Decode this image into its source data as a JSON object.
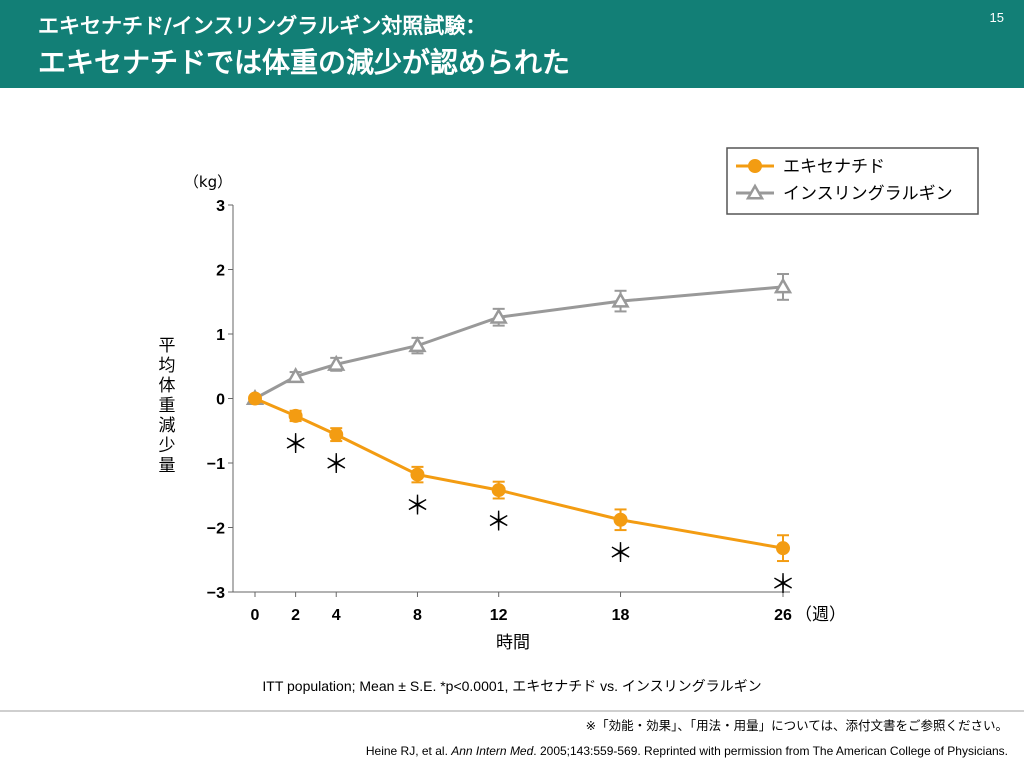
{
  "slide": {
    "title_line1": "エキセナチド/インスリングラルギン対照試験：",
    "title_line2": "エキセナチドでは体重の減少が認められた",
    "page_number": "15",
    "note": "ITT population; Mean ± S.E.  *p<0.0001, エキセナチド vs. インスリングラルギン",
    "footnote": "※「効能・効果」、「用法・用量」については、添付文書をご参照ください。",
    "citation_pre": "Heine RJ, et al. ",
    "citation_journal": "Ann Intern Med",
    "citation_post": ". 2005;143:559-569. Reprinted with permission from The American College of Physicians."
  },
  "colors": {
    "header_bg": "#127f76",
    "exenatide": "#f39c12",
    "glargine": "#999999"
  },
  "chart_data": {
    "type": "line",
    "x": [
      0,
      2,
      4,
      8,
      12,
      18,
      26
    ],
    "xlabel": "時間",
    "x_unit": "（週）",
    "y_unit": "（kg）",
    "ylabel": "平均体重減少量",
    "ylim": [
      -3,
      3
    ],
    "yticks": [
      3,
      2,
      1,
      0,
      -1,
      -2,
      -3
    ],
    "ytick_labels": [
      "3",
      "2",
      "1",
      "0",
      "−1",
      "−2",
      "−3"
    ],
    "grid": false,
    "legend_position": "top-right",
    "series": [
      {
        "name": "エキセナチド",
        "marker": "circle",
        "color": "#f39c12",
        "values": [
          0,
          -0.27,
          -0.56,
          -1.18,
          -1.42,
          -1.88,
          -2.32
        ],
        "errors": [
          0,
          0.08,
          0.1,
          0.12,
          0.13,
          0.16,
          0.2
        ],
        "significant": [
          false,
          true,
          true,
          true,
          true,
          true,
          true
        ]
      },
      {
        "name": "インスリングラルギン",
        "marker": "triangle",
        "color": "#999999",
        "values": [
          0,
          0.34,
          0.53,
          0.82,
          1.26,
          1.51,
          1.73
        ],
        "errors": [
          0,
          0.07,
          0.1,
          0.12,
          0.13,
          0.16,
          0.2
        ]
      }
    ],
    "significance_marker": "＊"
  }
}
